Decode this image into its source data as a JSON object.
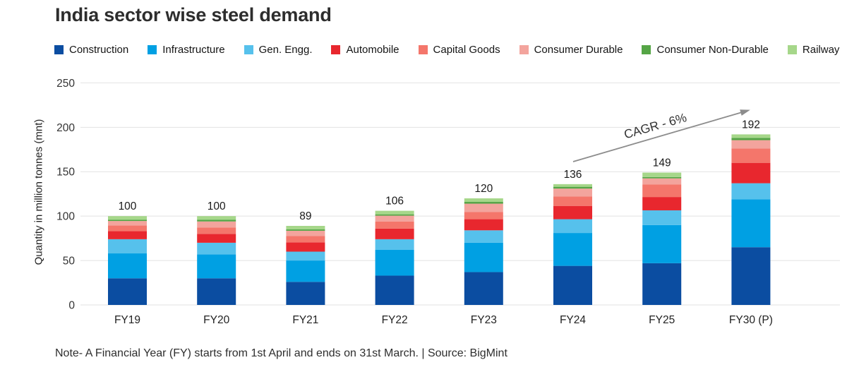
{
  "title": "India sector wise steel demand",
  "note": "Note- A Financial Year (FY) starts from 1st April and ends on 31st March. | Source: BigMint",
  "chart_data": {
    "type": "bar",
    "stacked": true,
    "title": "India sector wise steel demand",
    "ylabel": "Quantity in million tonnes (mnt)",
    "xlabel": "",
    "ylim": [
      0,
      250
    ],
    "yticks": [
      0,
      50,
      100,
      150,
      200,
      250
    ],
    "grid": true,
    "legend_position": "top",
    "categories": [
      "FY19",
      "FY20",
      "FY21",
      "FY22",
      "FY23",
      "FY24",
      "FY25",
      "FY30 (P)"
    ],
    "totals": [
      100,
      100,
      89,
      106,
      120,
      136,
      149,
      192
    ],
    "series": [
      {
        "name": "Construction",
        "color": "#0b4da1",
        "values": [
          30,
          30,
          26,
          33,
          37,
          44,
          47,
          65
        ]
      },
      {
        "name": "Infrastructure",
        "color": "#00a0e3",
        "values": [
          28,
          27,
          24,
          29,
          33,
          37,
          43,
          54
        ]
      },
      {
        "name": "Gen. Engg.",
        "color": "#56c1ec",
        "values": [
          16,
          13,
          10,
          12,
          14,
          15.5,
          16.5,
          18
        ]
      },
      {
        "name": "Automobile",
        "color": "#e8272e",
        "values": [
          9,
          10,
          10.5,
          12,
          12.5,
          15,
          15,
          23
        ]
      },
      {
        "name": "Capital Goods",
        "color": "#f4766b",
        "values": [
          6.5,
          7,
          7,
          8,
          8,
          10.5,
          14,
          16
        ]
      },
      {
        "name": "Consumer Durable",
        "color": "#f3a49d",
        "values": [
          5,
          7,
          6,
          6.5,
          9.5,
          9,
          7,
          9.5
        ]
      },
      {
        "name": "Consumer Non-Durable",
        "color": "#55a546",
        "values": [
          1.5,
          2,
          1.5,
          1.5,
          2,
          2,
          1.5,
          2.5
        ]
      },
      {
        "name": "Railway",
        "color": "#a6d78a",
        "values": [
          4,
          4,
          4,
          4,
          4,
          3,
          5,
          4
        ]
      }
    ],
    "annotation": {
      "label": "CAGR - 6%",
      "from_category": "FY24",
      "to_category": "FY30 (P)",
      "arrow_color": "#8c8c8c"
    }
  }
}
